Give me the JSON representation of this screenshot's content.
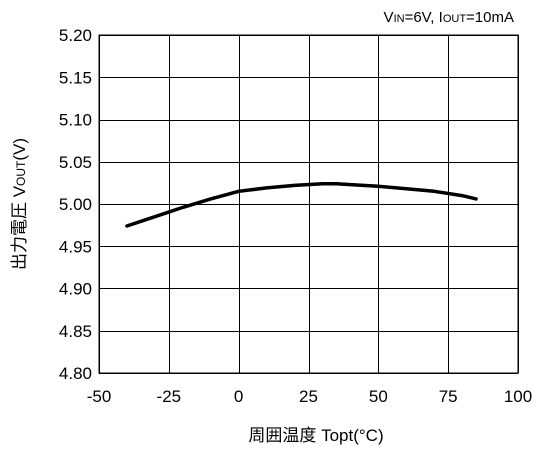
{
  "condition": {
    "v_main": "V",
    "v_sub": "IN",
    "v_value": "=6V, ",
    "i_main": "I",
    "i_sub": "OUT",
    "i_value": "=10mA"
  },
  "ylabel": {
    "main": "出力電圧 V",
    "sub": "OUT",
    "unit": "(V)"
  },
  "chart_data": {
    "type": "line",
    "title": "",
    "xlabel": "周囲温度 Topt(°C)",
    "ylabel": "出力電圧 VOUT(V)",
    "xlim": [
      -50,
      100
    ],
    "ylim": [
      4.8,
      5.2
    ],
    "x_ticks": [
      -50,
      -25,
      0,
      25,
      50,
      75,
      100
    ],
    "x_tick_labels": [
      "-50",
      "-25",
      "0",
      "25",
      "50",
      "75",
      "100"
    ],
    "y_ticks": [
      4.8,
      4.85,
      4.9,
      4.95,
      5.0,
      5.05,
      5.1,
      5.15,
      5.2
    ],
    "y_tick_labels": [
      "4.80",
      "4.85",
      "4.90",
      "4.95",
      "5.00",
      "5.05",
      "5.10",
      "5.15",
      "5.20"
    ],
    "grid": true,
    "series": [
      {
        "x": [
          -40,
          -30,
          -20,
          -10,
          0,
          10,
          20,
          30,
          35,
          40,
          50,
          60,
          70,
          80,
          85
        ],
        "y": [
          4.974,
          4.985,
          4.996,
          5.006,
          5.015,
          5.019,
          5.022,
          5.024,
          5.024,
          5.023,
          5.021,
          5.018,
          5.015,
          5.01,
          5.006
        ]
      }
    ]
  }
}
